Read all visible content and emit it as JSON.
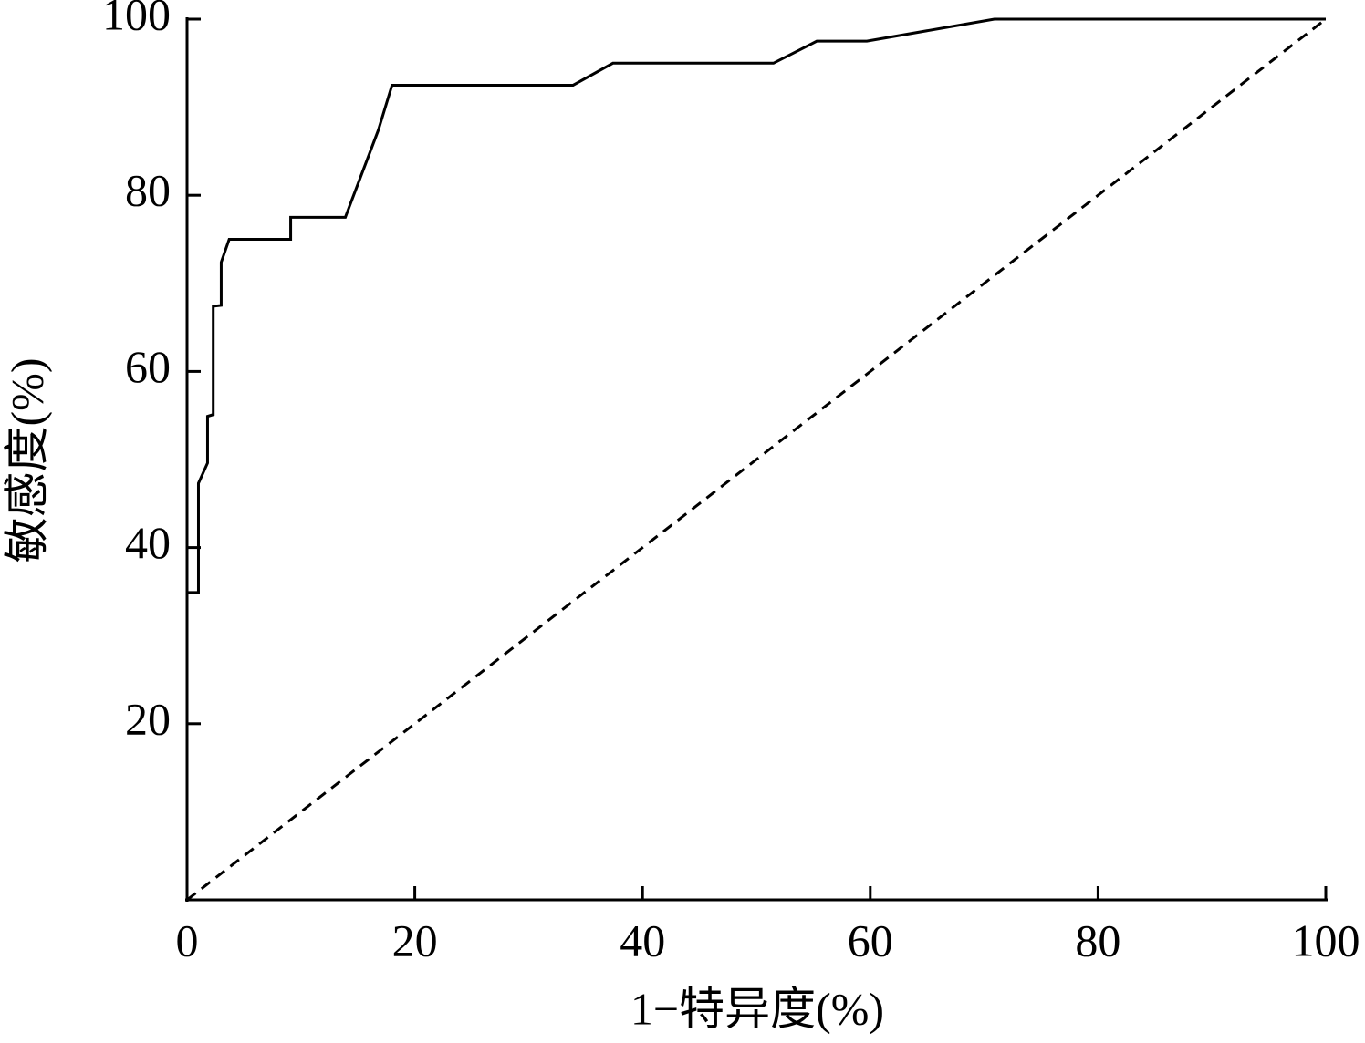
{
  "chart_data": {
    "type": "line",
    "x_label": "1−特异度(%)",
    "y_label": "敏感度(%)",
    "xlim": [
      0,
      100
    ],
    "ylim": [
      0,
      100
    ],
    "xticks": [
      0,
      20,
      40,
      60,
      80,
      100
    ],
    "yticks": [
      20,
      40,
      60,
      80,
      100
    ],
    "series": [
      {
        "color": "#000000",
        "line_style": "solid",
        "x": [
          0,
          1.0,
          1.0,
          1.8,
          1.8,
          2.3,
          2.3,
          3.0,
          3.0,
          3.7,
          9.1,
          9.1,
          13.9,
          16.8,
          18.0,
          33.9,
          37.4,
          51.5,
          55.3,
          59.7,
          70.9,
          100
        ],
        "values": [
          34.9,
          34.9,
          47.3,
          49.6,
          54.9,
          55.1,
          67.4,
          67.5,
          72.4,
          75.0,
          75.0,
          77.5,
          77.5,
          87.4,
          92.5,
          92.5,
          95.0,
          95.0,
          97.5,
          97.5,
          100,
          100
        ]
      },
      {
        "color": "#000000",
        "line_style": "dashed",
        "x": [
          0,
          100
        ],
        "values": [
          0,
          100
        ]
      }
    ]
  }
}
